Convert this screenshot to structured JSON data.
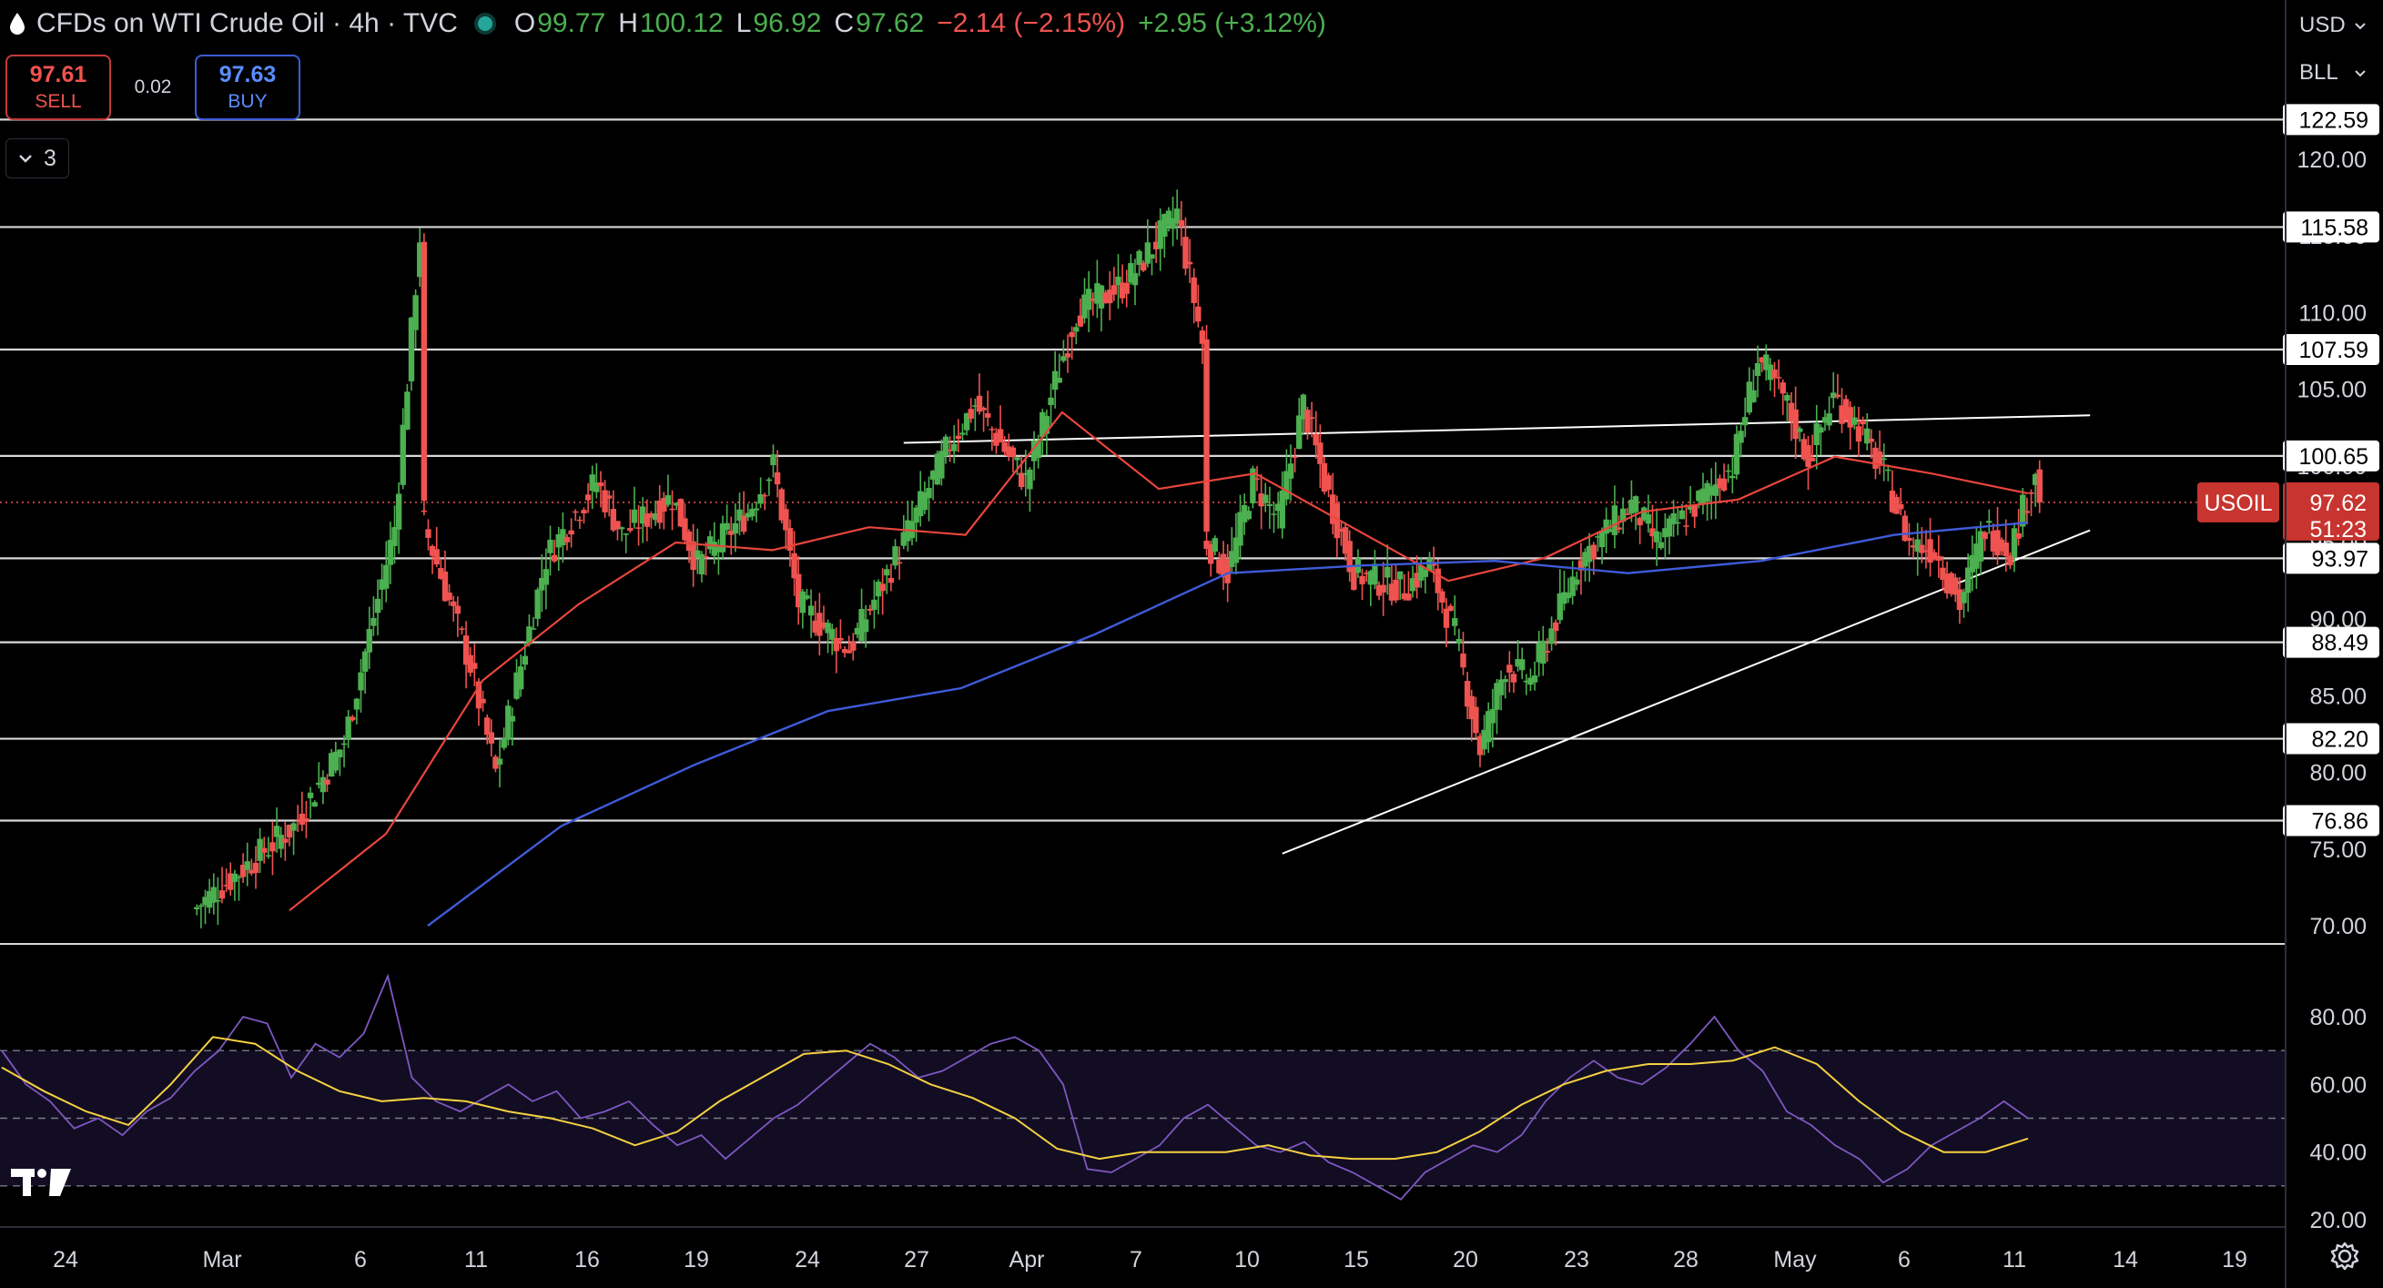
{
  "header": {
    "symbol_title": "CFDs on WTI Crude Oil · 4h · TVC",
    "open_label": "O",
    "open": "99.77",
    "high_label": "H",
    "high": "100.12",
    "low_label": "L",
    "low": "96.92",
    "close_label": "C",
    "close": "97.62",
    "change": "−2.14 (−2.15%)",
    "change2": "+2.95 (+3.12%)",
    "status_icon": "market-open-dot",
    "instrument_icon": "oil-drop-icon"
  },
  "trade": {
    "sell_price": "97.61",
    "sell_label": "SELL",
    "spread": "0.02",
    "buy_price": "97.63",
    "buy_label": "BUY"
  },
  "indicators_toggle": {
    "count": "3",
    "icon": "chevron-down-icon"
  },
  "axis_controls": {
    "currency": "USD",
    "unit": "BLL",
    "icon": "chevron-down-icon"
  },
  "price_badge": {
    "symbol": "USOIL",
    "price": "97.62",
    "countdown": "51:23",
    "color": "#c8342f"
  },
  "colors": {
    "up": "#4caf50",
    "down": "#ef5350",
    "ma_fast": "#e8453c",
    "ma_slow": "#3f5bd9",
    "rsi": "#7e57c2",
    "rsi_ma": "#f5d142",
    "trendline": "#ffffff"
  },
  "chart_data": [
    {
      "type": "candlestick",
      "title": "CFDs on WTI Crude Oil · 4h · TVC",
      "x_tick_labels": [
        "24",
        "Mar",
        "6",
        "11",
        "16",
        "19",
        "24",
        "27",
        "Apr",
        "7",
        "10",
        "15",
        "20",
        "23",
        "28",
        "May",
        "6",
        "11",
        "14",
        "19"
      ],
      "y_tick_labels": [
        "120.00",
        "115.00",
        "110.00",
        "105.00",
        "100.00",
        "95.00",
        "90.00",
        "85.00",
        "80.00",
        "75.00",
        "70.00"
      ],
      "ylim": [
        69,
        125.5
      ],
      "horizontal_levels": [
        122.59,
        115.58,
        107.59,
        100.65,
        93.97,
        88.49,
        82.2,
        76.86
      ],
      "trendlines": [
        {
          "from": [
            "Mar 27",
            101.5
          ],
          "to": [
            "May 13",
            103.3
          ]
        },
        {
          "from": [
            "Apr 11",
            74.7
          ],
          "to": [
            "May 13",
            95.8
          ]
        }
      ],
      "last_price": 97.62,
      "ohlc_path": [
        {
          "t": "Feb 28",
          "c": 71.0
        },
        {
          "t": "Mar 3",
          "c": 76.5
        },
        {
          "t": "Mar 5",
          "c": 82.0
        },
        {
          "t": "Mar 7",
          "c": 96.0
        },
        {
          "t": "Mar 8",
          "c": 115.0
        },
        {
          "t": "Mar 8",
          "c": 97.0
        },
        {
          "t": "Mar 10",
          "c": 87.0
        },
        {
          "t": "Mar 11",
          "c": 80.0
        },
        {
          "t": "Mar 13",
          "c": 94.0
        },
        {
          "t": "Mar 15",
          "c": 99.0
        },
        {
          "t": "Mar 16",
          "c": 95.5
        },
        {
          "t": "Mar 18",
          "c": 98.0
        },
        {
          "t": "Mar 19",
          "c": 93.5
        },
        {
          "t": "Mar 21",
          "c": 97.0
        },
        {
          "t": "Mar 22",
          "c": 100.0
        },
        {
          "t": "Mar 23",
          "c": 91.0
        },
        {
          "t": "Mar 25",
          "c": 88.0
        },
        {
          "t": "Mar 27",
          "c": 94.5
        },
        {
          "t": "Mar 29",
          "c": 101.5
        },
        {
          "t": "Mar 30",
          "c": 104.0
        },
        {
          "t": "Apr 1",
          "c": 99.0
        },
        {
          "t": "Apr 3",
          "c": 110.0
        },
        {
          "t": "Apr 5",
          "c": 112.0
        },
        {
          "t": "Apr 7",
          "c": 116.5
        },
        {
          "t": "Apr 8",
          "c": 108.0
        },
        {
          "t": "Apr 8",
          "c": 95.5
        },
        {
          "t": "Apr 9",
          "c": 93.0
        },
        {
          "t": "Apr 10",
          "c": 99.0
        },
        {
          "t": "Apr 11",
          "c": 96.5
        },
        {
          "t": "Apr 12",
          "c": 104.0
        },
        {
          "t": "Apr 13",
          "c": 98.0
        },
        {
          "t": "Apr 14",
          "c": 93.0
        },
        {
          "t": "Apr 16",
          "c": 92.0
        },
        {
          "t": "Apr 17",
          "c": 93.5
        },
        {
          "t": "Apr 18",
          "c": 89.0
        },
        {
          "t": "Apr 19",
          "c": 81.5
        },
        {
          "t": "Apr 20",
          "c": 87.0
        },
        {
          "t": "Apr 21",
          "c": 86.0
        },
        {
          "t": "Apr 22",
          "c": 90.0
        },
        {
          "t": "Apr 23",
          "c": 94.0
        },
        {
          "t": "Apr 25",
          "c": 97.5
        },
        {
          "t": "Apr 26",
          "c": 95.0
        },
        {
          "t": "Apr 27",
          "c": 96.5
        },
        {
          "t": "Apr 29",
          "c": 100.0
        },
        {
          "t": "Apr 30",
          "c": 107.0
        },
        {
          "t": "May 1",
          "c": 104.5
        },
        {
          "t": "May 2",
          "c": 100.5
        },
        {
          "t": "May 3",
          "c": 104.5
        },
        {
          "t": "May 4",
          "c": 102.5
        },
        {
          "t": "May 5",
          "c": 99.5
        },
        {
          "t": "May 6",
          "c": 95.0
        },
        {
          "t": "May 7",
          "c": 94.5
        },
        {
          "t": "May 8",
          "c": 91.0
        },
        {
          "t": "May 9",
          "c": 96.0
        },
        {
          "t": "May 10",
          "c": 94.5
        },
        {
          "t": "May 11",
          "c": 99.77
        },
        {
          "t": "May 11",
          "c": 97.62
        }
      ],
      "series": [
        {
          "name": "",
          "type": "moving-average",
          "values": [
            71.0,
            76.0,
            86.0,
            91.0,
            95.0,
            94.5,
            96.0,
            95.5,
            103.5,
            98.5,
            99.5,
            96.0,
            92.5,
            94.0,
            97.0,
            97.8,
            100.6,
            99.5,
            98.2
          ]
        },
        {
          "name": "",
          "type": "moving-average",
          "values": [
            70.0,
            76.5,
            80.5,
            84.0,
            85.5,
            89.0,
            93.0,
            93.5,
            93.8,
            93.0,
            93.8,
            95.5,
            96.3
          ]
        }
      ]
    },
    {
      "type": "line",
      "title": "",
      "y_tick_labels": [
        "80.00",
        "60.00",
        "40.00",
        "20.00"
      ],
      "ylim": [
        17,
        84
      ],
      "bands": [
        70,
        50,
        30
      ],
      "series": [
        {
          "name": "",
          "values": [
            70,
            60,
            55,
            47,
            50,
            45,
            52,
            56,
            64,
            70,
            80,
            78,
            62,
            72,
            68,
            75,
            92,
            62,
            55,
            52,
            56,
            60,
            55,
            58,
            50,
            52,
            55,
            48,
            42,
            45,
            38,
            44,
            50,
            54,
            60,
            66,
            72,
            68,
            62,
            64,
            68,
            72,
            74,
            70,
            60,
            35,
            34,
            38,
            42,
            50,
            54,
            48,
            42,
            40,
            43,
            37,
            34,
            30,
            26,
            34,
            38,
            42,
            40,
            45,
            55,
            62,
            67,
            62,
            60,
            65,
            72,
            80,
            70,
            64,
            52,
            48,
            42,
            38,
            31,
            35,
            42,
            46,
            50,
            55,
            50
          ]
        },
        {
          "name": "",
          "values": [
            65,
            58,
            52,
            48,
            60,
            74,
            72,
            64,
            58,
            55,
            56,
            55,
            52,
            50,
            47,
            42,
            46,
            55,
            62,
            69,
            70,
            66,
            60,
            56,
            50,
            41,
            38,
            40,
            40,
            40,
            42,
            39,
            38,
            38,
            40,
            46,
            54,
            60,
            64,
            66,
            66,
            67,
            71,
            66,
            55,
            46,
            40,
            40,
            44
          ]
        }
      ]
    }
  ]
}
